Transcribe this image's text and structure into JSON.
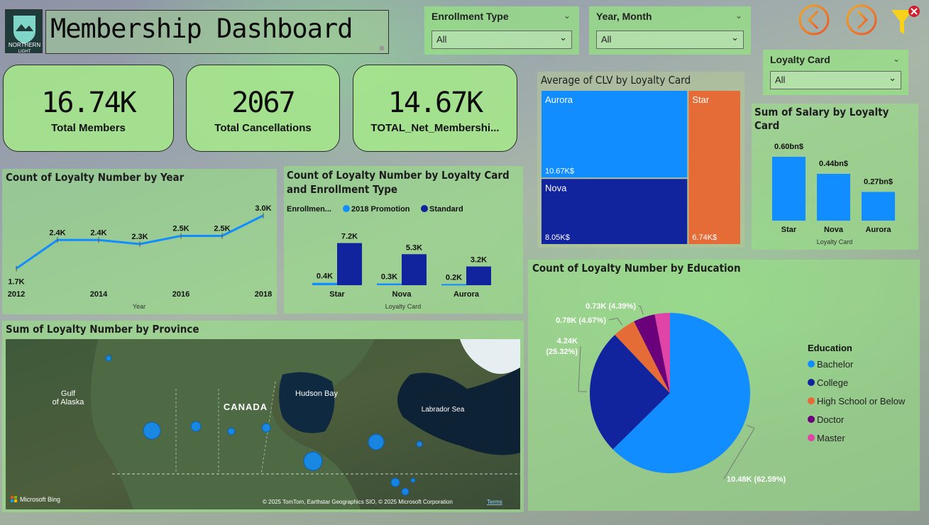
{
  "header": {
    "logo_text_1": "NORTHERN",
    "logo_text_2": "LIGHT",
    "title": "Membership Dashboard"
  },
  "nav": {
    "prev_icon": "chevron-left-circle-icon",
    "next_icon": "chevron-right-circle-icon",
    "filter_icon": "filter-clear-icon"
  },
  "slicers": {
    "enrollment_type": {
      "label": "Enrollment Type",
      "value": "All"
    },
    "year_month": {
      "label": "Year, Month",
      "value": "All"
    },
    "loyalty_card": {
      "label": "Loyalty Card",
      "value": "All"
    }
  },
  "kpis": [
    {
      "value": "16.74K",
      "label": "Total Members"
    },
    {
      "value": "2067",
      "label": "Total Cancellations"
    },
    {
      "value": "14.67K",
      "label": "TOTAL_Net_Membershi..."
    }
  ],
  "colors": {
    "blue": "#118dff",
    "navy": "#12239e",
    "orange": "#e66c37",
    "purple": "#6b007b",
    "pink": "#e044a7"
  },
  "chart_data": [
    {
      "id": "year_line",
      "type": "line",
      "title": "Count of Loyalty Number by Year",
      "xlabel": "Year",
      "ylabel": "",
      "x": [
        2012,
        2013,
        2014,
        2015,
        2016,
        2017,
        2018
      ],
      "values": [
        1.7,
        2.4,
        2.4,
        2.3,
        2.5,
        2.5,
        3.0
      ],
      "labels": [
        "1.7K",
        "2.4K",
        "2.4K",
        "2.3K",
        "2.5K",
        "2.5K",
        "3.0K"
      ],
      "xticks": [
        "2012",
        "2014",
        "2016",
        "2018"
      ],
      "ylim": [
        1.5,
        3.1
      ]
    },
    {
      "id": "card_enroll_bar",
      "type": "bar",
      "title": "Count of Loyalty Number by Loyalty Card and Enrollment Type",
      "xlabel": "Loyalty Card",
      "legend_title": "Enrollmen...",
      "categories": [
        "Star",
        "Nova",
        "Aurora"
      ],
      "series": [
        {
          "name": "2018 Promotion",
          "values": [
            0.4,
            0.3,
            0.2
          ],
          "labels": [
            "0.4K",
            "0.3K",
            "0.2K"
          ]
        },
        {
          "name": "Standard",
          "values": [
            7.2,
            5.3,
            3.2
          ],
          "labels": [
            "7.2K",
            "5.3K",
            "3.2K"
          ]
        }
      ],
      "ylim": [
        0,
        8
      ]
    },
    {
      "id": "clv_treemap",
      "type": "treemap",
      "title": "Average of CLV by Loyalty Card",
      "categories": [
        "Aurora",
        "Nova",
        "Star"
      ],
      "values": [
        10.67,
        8.05,
        6.74
      ],
      "labels": [
        "10.67K$",
        "8.05K$",
        "6.74K$"
      ]
    },
    {
      "id": "salary_bar",
      "type": "bar",
      "title": "Sum of Salary by Loyalty Card",
      "xlabel": "Loyalty Card",
      "categories": [
        "Star",
        "Nova",
        "Aurora"
      ],
      "values": [
        0.6,
        0.44,
        0.27
      ],
      "labels": [
        "0.60bn$",
        "0.44bn$",
        "0.27bn$"
      ],
      "ylim": [
        0,
        0.6
      ]
    },
    {
      "id": "education_pie",
      "type": "pie",
      "title": "Count of Loyalty Number by Education",
      "legend_title": "Education",
      "legend": "right",
      "categories": [
        "Bachelor",
        "College",
        "High School or Below",
        "Doctor",
        "Master"
      ],
      "values": [
        10.48,
        4.24,
        0.78,
        0.73,
        0.51
      ],
      "labels": [
        "10.48K (62.59%)",
        "4.24K (25.32%)",
        "0.78K (4.67%)",
        "0.73K (4.39%)",
        ""
      ]
    }
  ],
  "map": {
    "title": "Sum of Loyalty Number by Province",
    "labels": {
      "country": "CANADA",
      "gulf_1": "Gulf",
      "gulf_2": "of Alaska",
      "bay": "Hudson Bay",
      "sea": "Labrador Sea"
    },
    "bing": "Microsoft Bing",
    "attribution": "© 2025 TomTom, Earthstar Geographics SIO, © 2025 Microsoft Corporation",
    "terms": "Terms"
  }
}
